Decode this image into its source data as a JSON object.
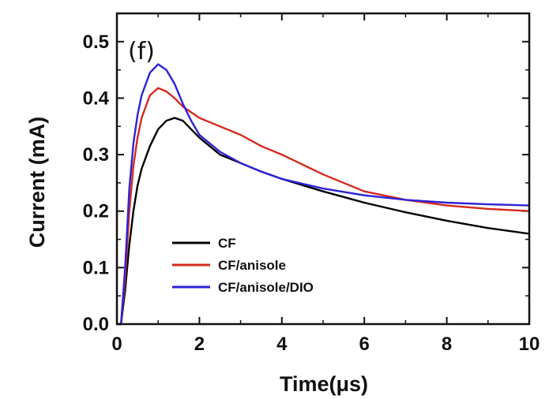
{
  "chart_data": {
    "type": "line",
    "panel_label": "(f)",
    "xlabel": "Time(μs)",
    "ylabel": "Current (mA)",
    "xlim": [
      0,
      10
    ],
    "ylim": [
      0,
      0.55
    ],
    "xticks": [
      0,
      2,
      4,
      6,
      8,
      10
    ],
    "xtick_labels": [
      "0",
      "2",
      "4",
      "6",
      "8",
      "10"
    ],
    "yticks": [
      0.0,
      0.1,
      0.2,
      0.3,
      0.4,
      0.5
    ],
    "ytick_labels": [
      "0.0",
      "0.1",
      "0.2",
      "0.3",
      "0.4",
      "0.5"
    ],
    "grid": false,
    "legend_position": "bottom-left",
    "series": [
      {
        "name": "CF",
        "color": "#000000",
        "x": [
          0.0,
          0.1,
          0.2,
          0.3,
          0.4,
          0.5,
          0.6,
          0.8,
          1.0,
          1.2,
          1.4,
          1.6,
          1.8,
          2.0,
          2.5,
          3.0,
          3.5,
          4.0,
          5.0,
          6.0,
          7.0,
          8.0,
          9.0,
          10.0
        ],
        "y": [
          0.0,
          0.0,
          0.06,
          0.14,
          0.2,
          0.245,
          0.275,
          0.315,
          0.345,
          0.36,
          0.365,
          0.36,
          0.345,
          0.33,
          0.3,
          0.285,
          0.27,
          0.257,
          0.235,
          0.215,
          0.198,
          0.183,
          0.17,
          0.16
        ]
      },
      {
        "name": "CF/anisole",
        "color": "#d42a1e",
        "x": [
          0.0,
          0.1,
          0.2,
          0.3,
          0.4,
          0.5,
          0.6,
          0.8,
          1.0,
          1.2,
          1.4,
          1.6,
          1.8,
          2.0,
          2.5,
          3.0,
          3.5,
          4.0,
          5.0,
          6.0,
          7.0,
          8.0,
          9.0,
          10.0
        ],
        "y": [
          0.0,
          0.0,
          0.08,
          0.2,
          0.28,
          0.33,
          0.365,
          0.405,
          0.418,
          0.412,
          0.4,
          0.385,
          0.375,
          0.365,
          0.35,
          0.335,
          0.315,
          0.3,
          0.265,
          0.235,
          0.22,
          0.21,
          0.204,
          0.2
        ]
      },
      {
        "name": "CF/anisole/DIO",
        "color": "#2d22d6",
        "x": [
          0.0,
          0.1,
          0.2,
          0.3,
          0.4,
          0.5,
          0.6,
          0.8,
          1.0,
          1.2,
          1.4,
          1.6,
          1.8,
          2.0,
          2.5,
          3.0,
          3.5,
          4.0,
          5.0,
          6.0,
          7.0,
          8.0,
          9.0,
          10.0
        ],
        "y": [
          0.0,
          0.0,
          0.1,
          0.24,
          0.32,
          0.37,
          0.405,
          0.445,
          0.46,
          0.45,
          0.425,
          0.39,
          0.36,
          0.335,
          0.305,
          0.285,
          0.27,
          0.257,
          0.24,
          0.228,
          0.22,
          0.215,
          0.212,
          0.21
        ]
      }
    ]
  }
}
